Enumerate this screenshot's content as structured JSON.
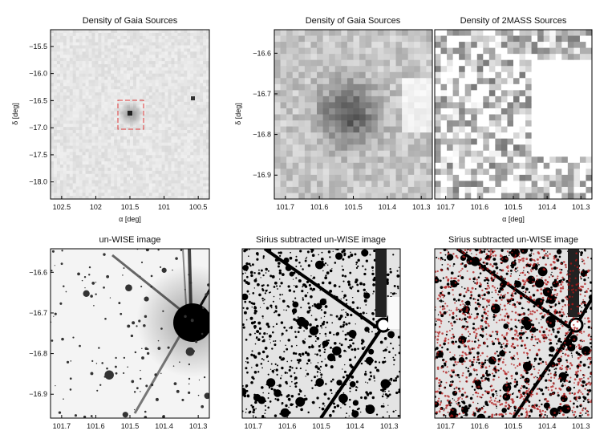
{
  "panels": {
    "gaia_wide": {
      "title": "Density of Gaia Sources",
      "xlabel": "α [deg]",
      "ylabel": "δ [deg]",
      "xticks": [
        "102.5",
        "102",
        "101.5",
        "101",
        "100.5"
      ],
      "yticks": [
        "−15.5",
        "−16.0",
        "−16.5",
        "−17.0",
        "−17.5",
        "−18.0"
      ],
      "box_color": "#e03a3a"
    },
    "gaia_zoom": {
      "title": "Density of Gaia Sources",
      "xlabel": "α [deg]",
      "ylabel": "δ [deg]",
      "xticks": [
        "101.7",
        "101.6",
        "101.5",
        "101.4",
        "101.3"
      ],
      "yticks": [
        "−16.6",
        "−16.7",
        "−16.8",
        "−16.9"
      ]
    },
    "twomass_zoom": {
      "title": "Density of 2MASS Sources",
      "xlabel": "α [deg]",
      "xticks": [
        "101.7",
        "101.6",
        "101.5",
        "101.4",
        "101.3"
      ]
    },
    "unwise": {
      "title": "un-WISE image",
      "xticks": [
        "101.7",
        "101.6",
        "101.5",
        "101.4",
        "101.3"
      ],
      "yticks": [
        "−16.6",
        "−16.7",
        "−16.8",
        "−16.9"
      ]
    },
    "unwise_sub": {
      "title": "Sirius subtracted un-WISE image",
      "xticks": [
        "101.7",
        "101.6",
        "101.5",
        "101.4",
        "101.3"
      ]
    },
    "unwise_sub_overlay": {
      "title": "Sirius subtracted un-WISE image",
      "xticks": [
        "101.7",
        "101.6",
        "101.5",
        "101.4",
        "101.3"
      ],
      "overlay_color": "#b01818"
    }
  }
}
